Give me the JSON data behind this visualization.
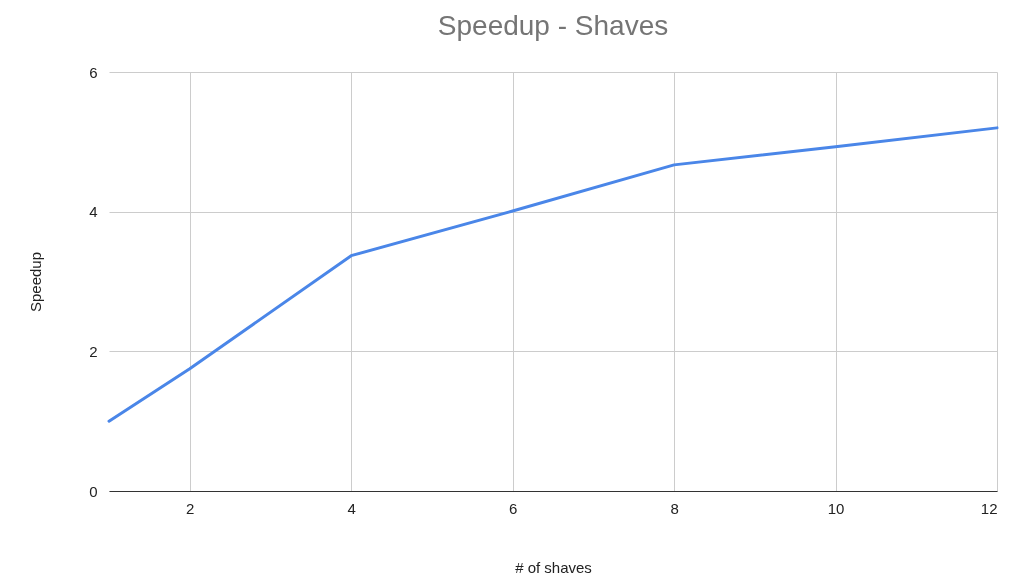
{
  "chart_data": {
    "type": "line",
    "title": "Speedup  - Shaves",
    "xlabel": "# of shaves",
    "ylabel": "Speedup",
    "x": [
      1,
      2,
      4,
      6,
      8,
      10,
      12
    ],
    "series": [
      {
        "color": "#4a86e8",
        "values": [
          1.0,
          1.75,
          3.37,
          4.01,
          4.67,
          4.93,
          5.2
        ]
      }
    ],
    "xlim": [
      1,
      12
    ],
    "xticks": [
      2,
      4,
      6,
      8,
      10,
      12
    ],
    "ylim": [
      0,
      6
    ],
    "yticks": [
      0,
      2,
      4,
      6
    ],
    "grid": true,
    "marker": "none",
    "line_style": "solid"
  }
}
